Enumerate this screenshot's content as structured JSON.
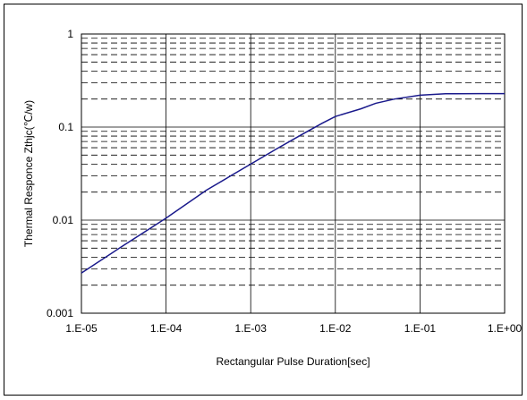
{
  "chart_data": {
    "type": "line",
    "title": "",
    "xlabel": "Rectangular Pulse Duration[sec]",
    "ylabel": "Thermal Responce Zthjc(℃/w)",
    "x_scale": "log",
    "y_scale": "log",
    "xlim": [
      1e-05,
      1
    ],
    "ylim": [
      0.001,
      1
    ],
    "x_ticks": [
      1e-05,
      0.0001,
      0.001,
      0.01,
      0.1,
      1
    ],
    "x_tick_labels": [
      "1.E-05",
      "1.E-04",
      "1.E-03",
      "1.E-02",
      "1.E-01",
      "1.E+00"
    ],
    "y_ticks": [
      0.001,
      0.01,
      0.1,
      1
    ],
    "y_tick_labels": [
      "0.001",
      "0.01",
      "0.1",
      "1"
    ],
    "grid": {
      "major": "solid",
      "minor": "dashed"
    },
    "series": [
      {
        "color": "#1a1a8c",
        "x": [
          1e-05,
          3e-05,
          0.0001,
          0.0003,
          0.001,
          0.002,
          0.004,
          0.007,
          0.01,
          0.02,
          0.03,
          0.05,
          0.1,
          0.2,
          0.5,
          1
        ],
        "y": [
          0.0027,
          0.0052,
          0.0105,
          0.021,
          0.04,
          0.058,
          0.083,
          0.11,
          0.13,
          0.157,
          0.18,
          0.2,
          0.22,
          0.228,
          0.229,
          0.229
        ]
      }
    ]
  }
}
